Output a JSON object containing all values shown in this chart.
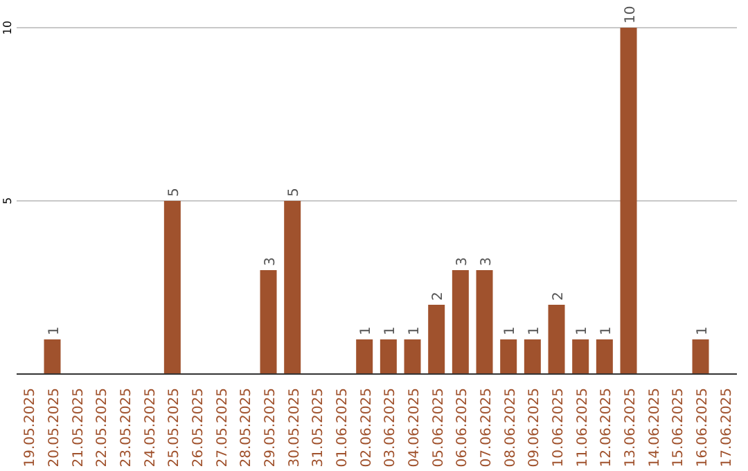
{
  "chart_data": {
    "type": "bar",
    "categories": [
      "19.05.2025",
      "20.05.2025",
      "21.05.2025",
      "22.05.2025",
      "23.05.2025",
      "24.05.2025",
      "25.05.2025",
      "26.05.2025",
      "27.05.2025",
      "28.05.2025",
      "29.05.2025",
      "30.05.2025",
      "31.05.2025",
      "01.06.2025",
      "02.06.2025",
      "03.06.2025",
      "04.06.2025",
      "05.06.2025",
      "06.06.2025",
      "07.06.2025",
      "08.06.2025",
      "09.06.2025",
      "10.06.2025",
      "11.06.2025",
      "12.06.2025",
      "13.06.2025",
      "14.06.2025",
      "15.06.2025",
      "16.06.2025",
      "17.06.2025"
    ],
    "values": [
      0,
      1,
      0,
      0,
      0,
      0,
      5,
      0,
      0,
      0,
      3,
      5,
      0,
      0,
      1,
      1,
      1,
      2,
      3,
      3,
      1,
      1,
      2,
      1,
      1,
      10,
      0,
      0,
      1,
      0
    ],
    "value_labels": [
      null,
      "1",
      null,
      null,
      null,
      null,
      "5",
      null,
      null,
      null,
      "3",
      "5",
      null,
      null,
      "1",
      "1",
      "1",
      "2",
      "3",
      "3",
      "1",
      "1",
      "2",
      "1",
      "1",
      "10",
      null,
      null,
      "1",
      null
    ],
    "color": "#a0522d",
    "ylim": [
      0,
      10
    ],
    "yticks": [
      {
        "value": 0,
        "label": null
      },
      5,
      10
    ],
    "grid": "y"
  }
}
